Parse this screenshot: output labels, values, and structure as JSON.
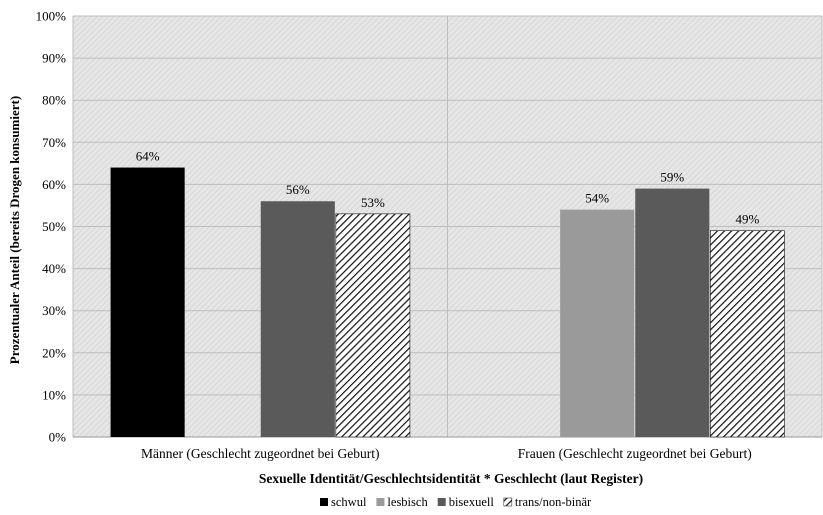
{
  "chart_data": {
    "type": "bar",
    "xlabel": "Sexuelle Identität/Geschlechtsidentität * Geschlecht (laut Register)",
    "ylabel": "Prozentualer Anteil (bereits Drogen konsumiert)",
    "ylim": [
      0,
      100
    ],
    "yticks": [
      "0%",
      "10%",
      "20%",
      "30%",
      "40%",
      "50%",
      "60%",
      "70%",
      "80%",
      "90%",
      "100%"
    ],
    "grid": true,
    "legend_position": "bottom",
    "categories": [
      "Männer (Geschlecht zugeordnet bei Geburt)",
      "Frauen (Geschlecht zugeordnet bei Geburt)"
    ],
    "series": [
      {
        "name": "schwul",
        "color": "#000000",
        "pattern": "solid",
        "values": [
          64,
          null
        ],
        "labels": [
          "64%",
          ""
        ]
      },
      {
        "name": "lesbisch",
        "color": "#9a9a9a",
        "pattern": "solid",
        "values": [
          null,
          54
        ],
        "labels": [
          "",
          "54%"
        ]
      },
      {
        "name": "bisexuell",
        "color": "#5a5a5a",
        "pattern": "solid",
        "values": [
          56,
          59
        ],
        "labels": [
          "56%",
          "59%"
        ]
      },
      {
        "name": "trans/non-binär",
        "color": "#111111",
        "pattern": "hatch",
        "values": [
          53,
          49
        ],
        "labels": [
          "53%",
          "49%"
        ]
      }
    ]
  }
}
